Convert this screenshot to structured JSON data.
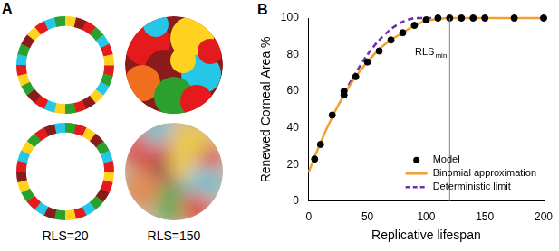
{
  "panel_a": {
    "label": "A",
    "captions": [
      "RLS=20",
      "RLS=150"
    ]
  },
  "chart_data": {
    "type": "scatter",
    "label": "B",
    "x_label": "Replicative lifespan",
    "y_label": "Renewed Corneal Area %",
    "xlim": [
      0,
      200
    ],
    "xticks": [
      0,
      50,
      100,
      150,
      200
    ],
    "ylim": [
      0,
      100
    ],
    "yticks": [
      0,
      20,
      40,
      60,
      80,
      100
    ],
    "grid": false,
    "legend": "lower right",
    "annotations": [
      {
        "text": "RLS",
        "subscript": "min",
        "x": 120
      }
    ],
    "series": [
      {
        "name": "Model",
        "type": "scatter",
        "color": "#000000",
        "marker": "circle",
        "line_style": "none",
        "x": [
          5,
          10,
          20,
          30,
          30,
          40,
          50,
          60,
          70,
          80,
          90,
          100,
          110,
          120,
          130,
          140,
          150,
          175,
          200
        ],
        "values": [
          23,
          31,
          47,
          58,
          60,
          68,
          76,
          82,
          88,
          92,
          96,
          99,
          100,
          100,
          100,
          100,
          100,
          100,
          100
        ]
      },
      {
        "name": "Binomial approximation",
        "type": "line",
        "color": "#f0a030",
        "marker": "none",
        "line_style": "solid",
        "x": [
          0,
          10,
          20,
          30,
          40,
          50,
          60,
          70,
          80,
          90,
          100,
          110,
          120,
          150,
          200
        ],
        "values": [
          16,
          32,
          46,
          58,
          68,
          76,
          83,
          88,
          92,
          96,
          98.5,
          99.5,
          100,
          100,
          100
        ]
      },
      {
        "name": "Deterministic limit",
        "type": "line",
        "color": "#7030a0",
        "marker": "none",
        "line_style": "dashed",
        "x": [
          30,
          40,
          50,
          60,
          70,
          80,
          90,
          100,
          110
        ],
        "values": [
          59,
          70,
          80,
          88,
          94,
          98,
          100,
          100,
          100
        ]
      }
    ]
  }
}
